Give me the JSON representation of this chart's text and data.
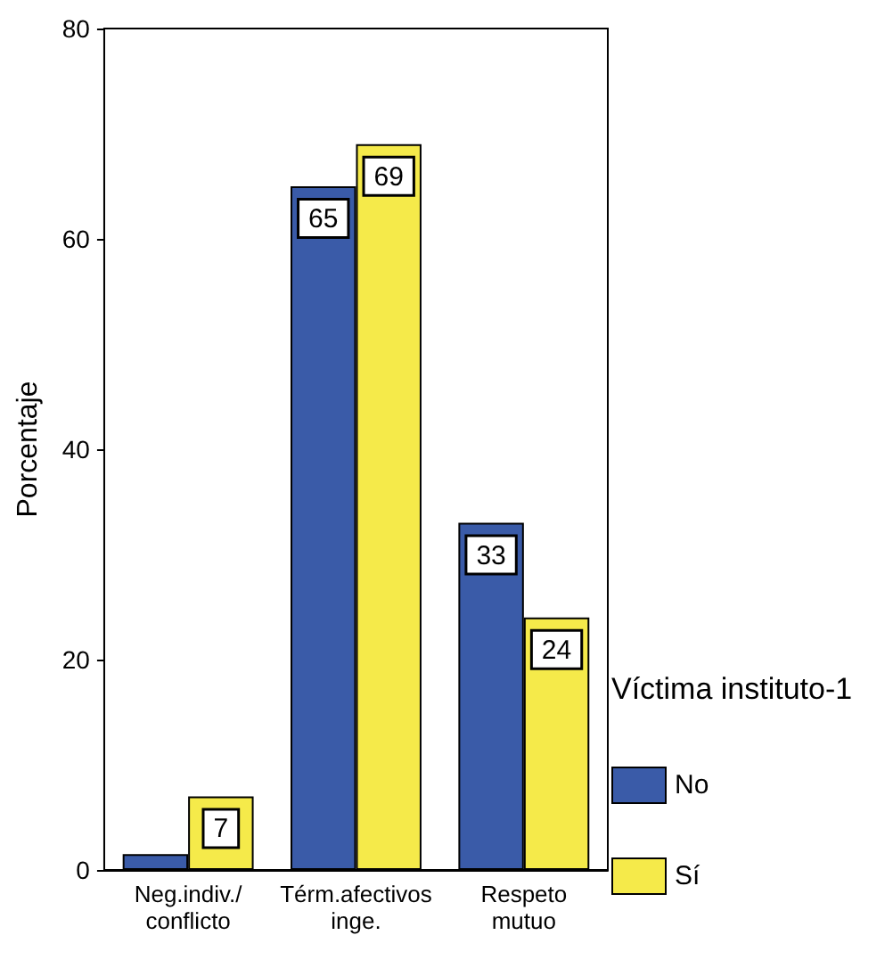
{
  "chart_data": {
    "type": "bar",
    "ylabel": "Porcentaje",
    "legend_title": "Víctima instituto-1",
    "categories": [
      "Neg.indiv./conflicto",
      "Térm.afectivos inge.",
      "Respeto mutuo"
    ],
    "series": [
      {
        "name": "No",
        "color": "#3a5ba8",
        "values": [
          1.5,
          65,
          33
        ],
        "value_labels": [
          null,
          "65",
          "33"
        ]
      },
      {
        "name": "Sí",
        "color": "#f5ea4a",
        "values": [
          7,
          69,
          24
        ],
        "value_labels": [
          "7",
          "69",
          "24"
        ]
      }
    ],
    "ylim": [
      0,
      80
    ],
    "yticks": [
      0,
      20,
      40,
      60,
      80
    ],
    "grid": false,
    "legend": "right"
  }
}
